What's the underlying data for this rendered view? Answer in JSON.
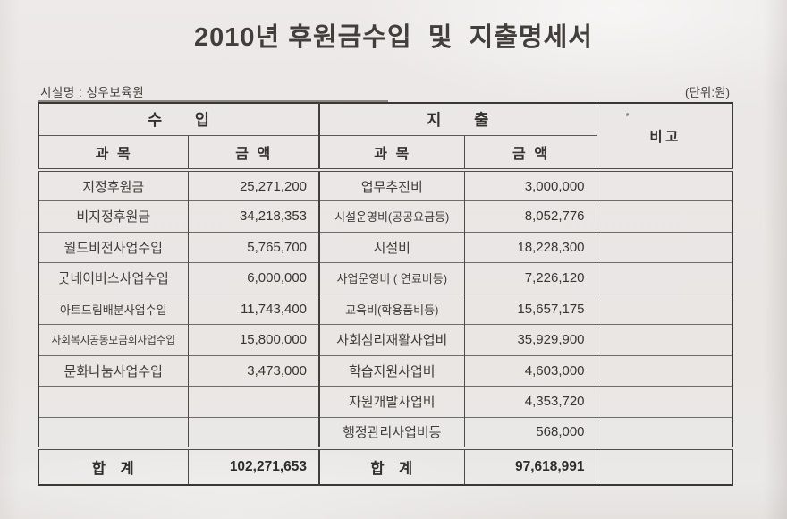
{
  "page": {
    "title": "2010년 후원금수입  및  지출명세서",
    "facility_label": "시설명 :  성우보육원",
    "unit_label": "(단위:원)"
  },
  "table": {
    "headers": {
      "income": "수입",
      "expense": "지출",
      "remarks": "비고",
      "category": "과목",
      "amount": "금액"
    },
    "rows": [
      {
        "income_cat": "지정후원금",
        "income_amt": "25,271,200",
        "expense_cat": "업무추진비",
        "expense_amt": "3,000,000",
        "remarks": ""
      },
      {
        "income_cat": "비지정후원금",
        "income_amt": "34,218,353",
        "expense_cat": "시설운영비(공공요금등)",
        "expense_amt": "8,052,776",
        "remarks": ""
      },
      {
        "income_cat": "월드비전사업수입",
        "income_amt": "5,765,700",
        "expense_cat": "시설비",
        "expense_amt": "18,228,300",
        "remarks": ""
      },
      {
        "income_cat": "굿네이버스사업수입",
        "income_amt": "6,000,000",
        "expense_cat": "사업운영비 ( 연료비등)",
        "expense_amt": "7,226,120",
        "remarks": ""
      },
      {
        "income_cat": "아트드림배분사업수입",
        "income_amt": "11,743,400",
        "expense_cat": "교육비(학용품비등)",
        "expense_amt": "15,657,175",
        "remarks": ""
      },
      {
        "income_cat": "사회복지공동모금회사업수입",
        "income_amt": "15,800,000",
        "expense_cat": "사회심리재활사업비",
        "expense_amt": "35,929,900",
        "remarks": ""
      },
      {
        "income_cat": "문화나눔사업수입",
        "income_amt": "3,473,000",
        "expense_cat": "학습지원사업비",
        "expense_amt": "4,603,000",
        "remarks": ""
      },
      {
        "income_cat": "",
        "income_amt": "",
        "expense_cat": "자원개발사업비",
        "expense_amt": "4,353,720",
        "remarks": ""
      },
      {
        "income_cat": "",
        "income_amt": "",
        "expense_cat": "행정관리사업비등",
        "expense_amt": "568,000",
        "remarks": ""
      }
    ],
    "total": {
      "label": "합계",
      "income_amount": "102,271,653",
      "expense_amount": "97,618,991",
      "remarks": ""
    }
  },
  "colors": {
    "paper": "#eae7e5",
    "ink": "#3b3835",
    "grid_line": "#6f6c69",
    "border": "#3a3835"
  }
}
